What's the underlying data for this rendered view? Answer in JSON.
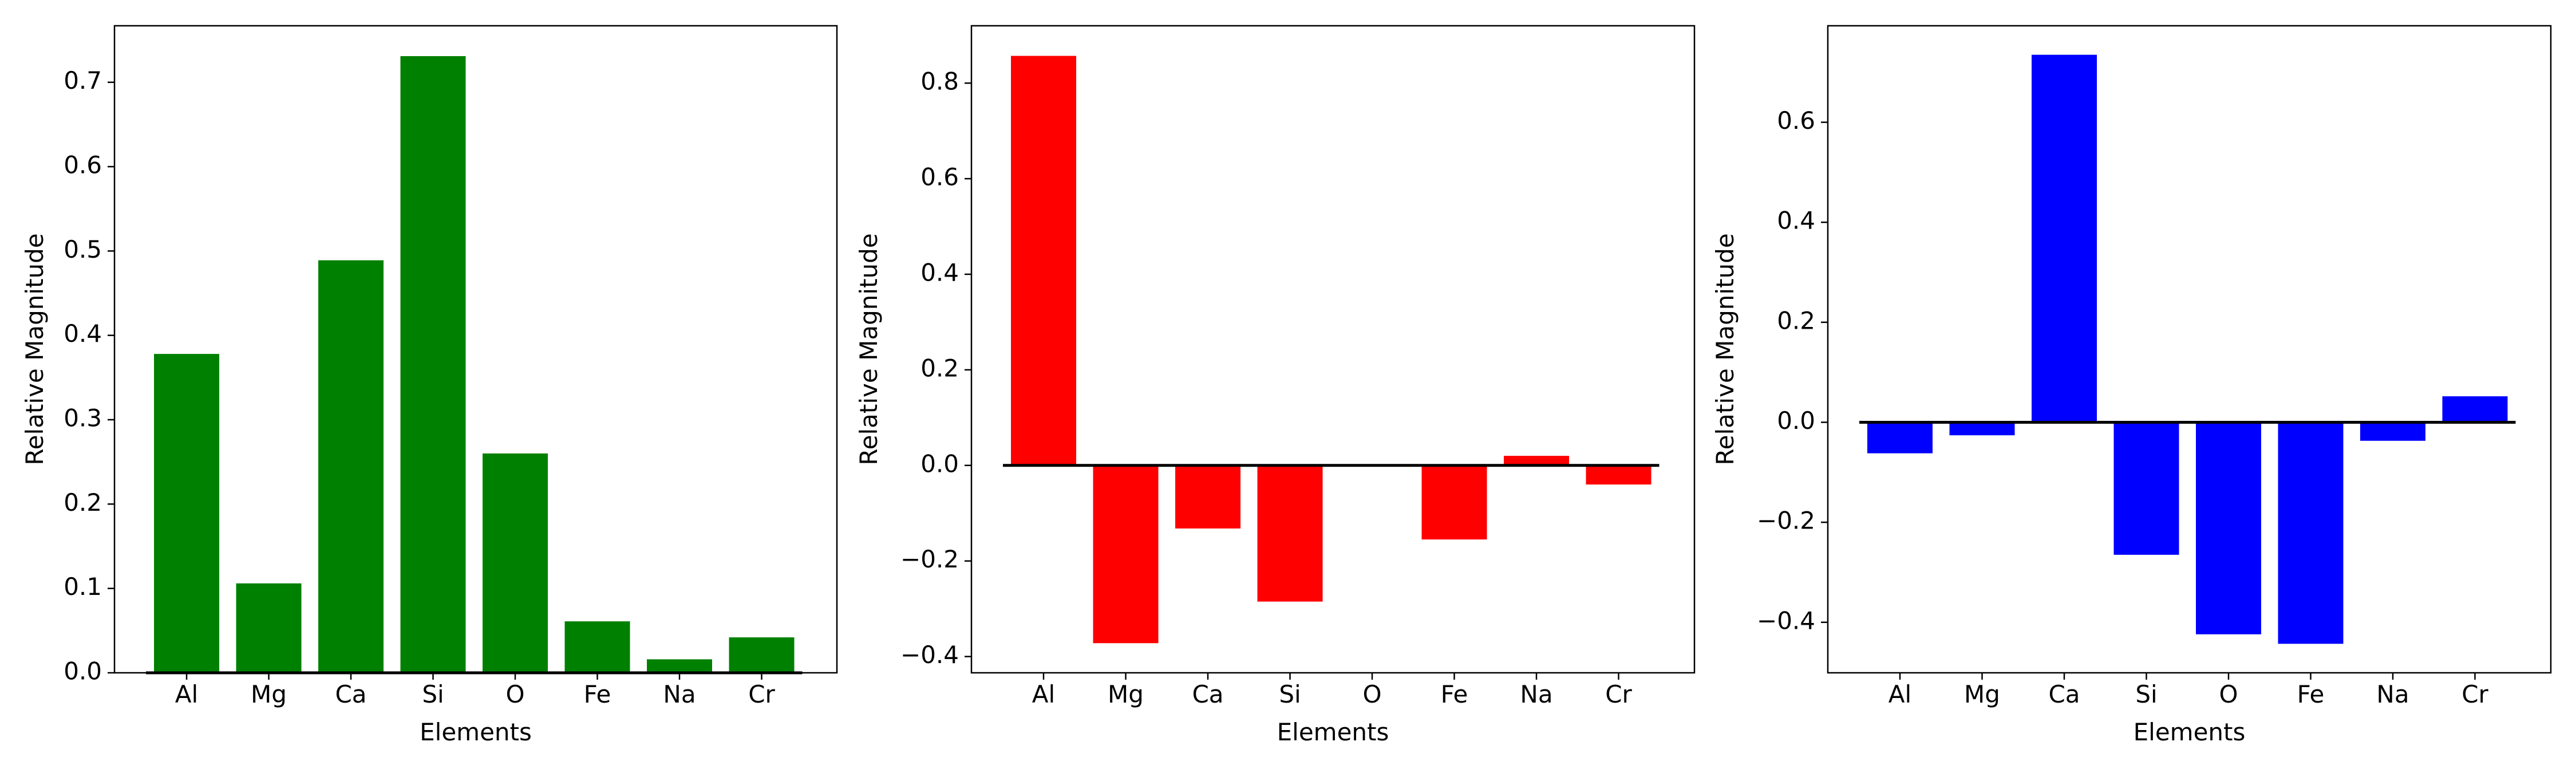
{
  "chart_data": [
    {
      "type": "bar",
      "categories": [
        "Al",
        "Mg",
        "Ca",
        "Si",
        "O",
        "Fe",
        "Na",
        "Cr"
      ],
      "values": [
        0.378,
        0.106,
        0.489,
        0.731,
        0.26,
        0.061,
        0.016,
        0.042
      ],
      "color": "#008000",
      "xlabel": "Elements",
      "ylabel": "Relative Magnitude",
      "ylim": [
        0,
        0.767
      ],
      "yticks": [
        0.0,
        0.1,
        0.2,
        0.3,
        0.4,
        0.5,
        0.6,
        0.7
      ],
      "ytick_labels": [
        "0.0",
        "0.1",
        "0.2",
        "0.3",
        "0.4",
        "0.5",
        "0.6",
        "0.7"
      ],
      "zero_line": true,
      "grid": false
    },
    {
      "type": "bar",
      "categories": [
        "Al",
        "Mg",
        "Ca",
        "Si",
        "O",
        "Fe",
        "Na",
        "Cr"
      ],
      "values": [
        0.857,
        -0.372,
        -0.132,
        -0.285,
        0.0,
        -0.155,
        0.02,
        -0.04
      ],
      "color": "#ff0000",
      "xlabel": "Elements",
      "ylabel": "Relative Magnitude",
      "ylim": [
        -0.434,
        0.92
      ],
      "yticks": [
        -0.4,
        -0.2,
        0.0,
        0.2,
        0.4,
        0.6,
        0.8
      ],
      "ytick_labels": [
        "−0.4",
        "−0.2",
        "0.0",
        "0.2",
        "0.4",
        "0.6",
        "0.8"
      ],
      "zero_line": true,
      "grid": false
    },
    {
      "type": "bar",
      "categories": [
        "Al",
        "Mg",
        "Ca",
        "Si",
        "O",
        "Fe",
        "Na",
        "Cr"
      ],
      "values": [
        -0.062,
        -0.026,
        0.735,
        -0.265,
        -0.424,
        -0.443,
        -0.037,
        0.052
      ],
      "color": "#0000ff",
      "xlabel": "Elements",
      "ylabel": "Relative Magnitude",
      "ylim": [
        -0.501,
        0.793
      ],
      "yticks": [
        -0.4,
        -0.2,
        0.0,
        0.2,
        0.4,
        0.6
      ],
      "ytick_labels": [
        "−0.4",
        "−0.2",
        "0.0",
        "0.2",
        "0.4",
        "0.6"
      ],
      "zero_line": true,
      "grid": false
    }
  ]
}
